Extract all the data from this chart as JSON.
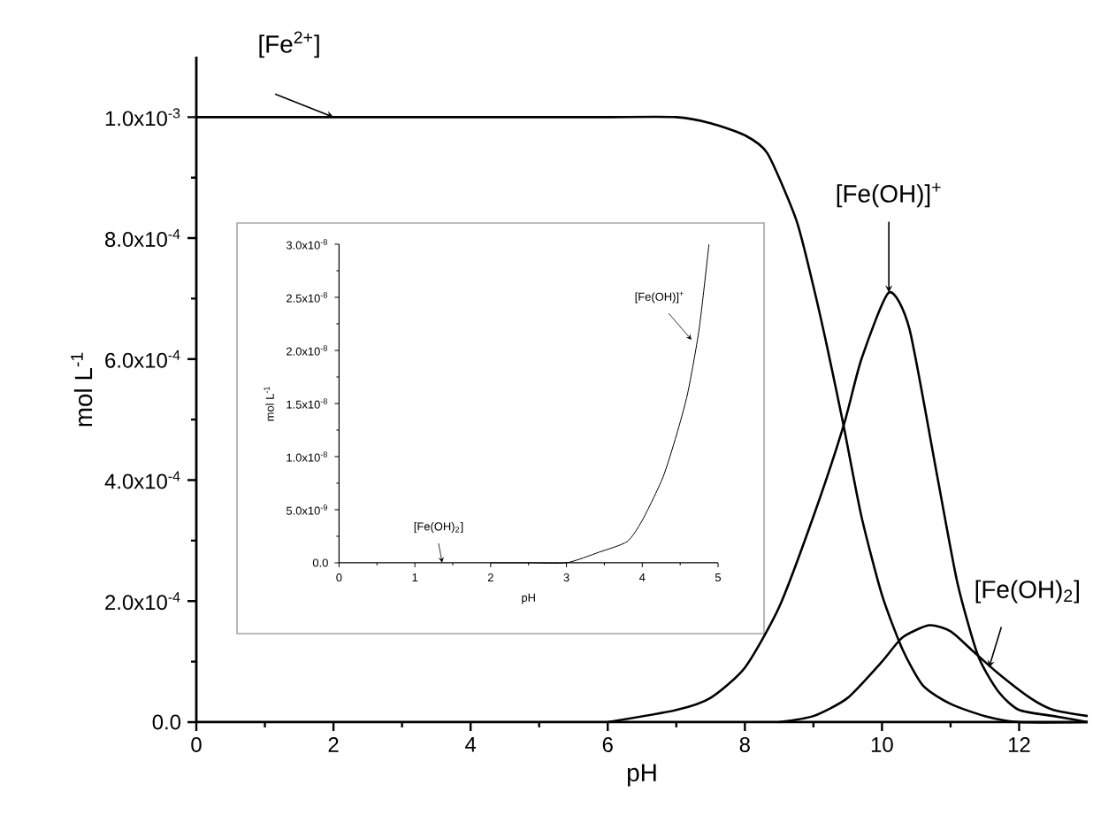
{
  "chart_data": [
    {
      "type": "line",
      "xlabel": "pH",
      "ylabel": "mol L$^{-1}$",
      "xlim": [
        0,
        13
      ],
      "ylim": [
        0,
        0.0011
      ],
      "xticks": [
        0,
        2,
        4,
        6,
        8,
        10,
        12
      ],
      "yticks": [
        {
          "value": 0,
          "label": "0.0"
        },
        {
          "value": 0.0002,
          "label": "2.0x10$^{-4}$"
        },
        {
          "value": 0.0004,
          "label": "4.0x10$^{-4}$"
        },
        {
          "value": 0.0006,
          "label": "6.0x10$^{-4}$"
        },
        {
          "value": 0.0008,
          "label": "8.0x10$^{-4}$"
        },
        {
          "value": 0.001,
          "label": "1.0x10$^{-3}$"
        }
      ],
      "marker": "none",
      "line_style": "solid",
      "series": [
        {
          "color": "#000000",
          "x": [
            0,
            1,
            2,
            3,
            4,
            5,
            6,
            7,
            7.5,
            8,
            8.33,
            8.75,
            9,
            9.2,
            9.44,
            9.7,
            10,
            10.3,
            10.6,
            11,
            11.5,
            12,
            13
          ],
          "values": [
            0.001,
            0.001,
            0.001,
            0.001,
            0.001,
            0.001,
            0.001,
            0.001,
            0.00099,
            0.00097,
            0.00094,
            0.00083,
            0.00072,
            0.00062,
            0.00049,
            0.00034,
            0.00021,
            0.00012,
            6e-05,
            3e-05,
            1e-05,
            0,
            0
          ]
        },
        {
          "color": "#000000",
          "x": [
            6,
            7,
            7.5,
            8,
            8.5,
            9,
            9.44,
            9.7,
            10.1,
            10.4,
            10.8,
            11.1,
            11.4,
            11.7,
            12,
            12.5,
            13
          ],
          "values": [
            0,
            2e-05,
            4e-05,
            9e-05,
            0.00019,
            0.00034,
            0.00049,
            0.0006,
            0.00071,
            0.00065,
            0.00041,
            0.00023,
            0.00011,
            5e-05,
            2e-05,
            1e-05,
            0
          ]
        },
        {
          "color": "#000000",
          "x": [
            8.5,
            9,
            9.5,
            10,
            10.3,
            10.69,
            11,
            11.3,
            11.7,
            12.16,
            12.5,
            13
          ],
          "values": [
            0,
            1e-05,
            4e-05,
            0.0001,
            0.00014,
            0.00016,
            0.00015,
            0.00012,
            8e-05,
            4e-05,
            2e-05,
            1e-05
          ]
        }
      ],
      "annotations": [
        {
          "text": "[Fe$^{2+}$]",
          "x": 2,
          "y": 0.001
        },
        {
          "text": "[Fe(OH)]$^{+}$",
          "x": 10.1,
          "y": 0.00071
        },
        {
          "text": "[Fe(OH)$_{2}$]",
          "x": 11.56,
          "y": 9e-05
        }
      ]
    },
    {
      "type": "line",
      "xlabel": "pH",
      "ylabel": "mol L$^{-1}$",
      "xlim": [
        0,
        5
      ],
      "ylim": [
        0,
        3e-08
      ],
      "xticks": [
        0,
        1,
        2,
        3,
        4,
        5
      ],
      "yticks": [
        {
          "value": 0,
          "label": "0.0"
        },
        {
          "value": 5e-09,
          "label": "5.0x10$^{-9}$"
        },
        {
          "value": 1e-08,
          "label": "1.0x10$^{-8}$"
        },
        {
          "value": 1.5e-08,
          "label": "1.5x10$^{-8}$"
        },
        {
          "value": 2e-08,
          "label": "2.0x10$^{-8}$"
        },
        {
          "value": 2.5e-08,
          "label": "2.5x10$^{-8}$"
        },
        {
          "value": 3e-08,
          "label": "3.0x10$^{-8}$"
        }
      ],
      "marker": "none",
      "line_style": "solid",
      "series": [
        {
          "color": "#000000",
          "x": [
            2,
            2.5,
            3,
            3.43,
            3.8,
            4,
            4.27,
            4.45,
            4.6,
            4.75,
            4.88
          ],
          "values": [
            0,
            0,
            0,
            1e-09,
            2e-09,
            4e-09,
            8e-09,
            1.2e-08,
            1.6e-08,
            2.2e-08,
            3e-08
          ]
        }
      ],
      "annotations": [
        {
          "text": "[Fe(OH)$_{2}$]",
          "x": 1.36,
          "y": 0
        },
        {
          "text": "[Fe(OH)]$^{+}$",
          "x": 4.65,
          "y": 2.1e-08
        }
      ]
    }
  ]
}
